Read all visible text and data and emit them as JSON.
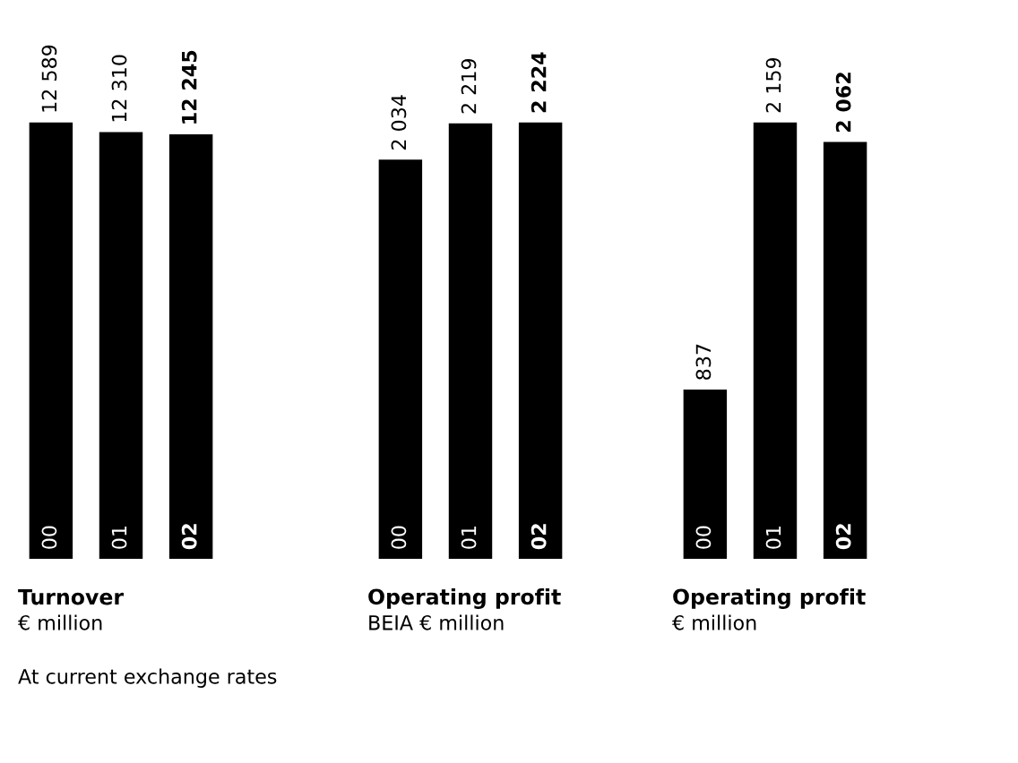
{
  "chart_data": [
    {
      "type": "bar",
      "title": "Turnover",
      "subtitle": "€ million",
      "categories": [
        "00",
        "01",
        "02"
      ],
      "values": [
        12589,
        12310,
        12245
      ],
      "color": "#000000",
      "value_labels": [
        "12 589",
        "12 310",
        "12 245"
      ],
      "annotations": [
        "At current exchange rates"
      ]
    },
    {
      "type": "bar",
      "title": "Operating profit",
      "subtitle": "BEIA € million",
      "categories": [
        "00",
        "01",
        "02"
      ],
      "values": [
        2034,
        2219,
        2224
      ],
      "color": "#000000",
      "value_labels": [
        "2 034",
        "2 219",
        "2 224"
      ]
    },
    {
      "type": "bar",
      "title": "Operating profit",
      "subtitle": "€ million",
      "categories": [
        "00",
        "01",
        "02"
      ],
      "values": [
        837,
        2159,
        2062
      ],
      "color": "#000000",
      "value_labels": [
        "837",
        "2 159",
        "2 062"
      ]
    }
  ]
}
